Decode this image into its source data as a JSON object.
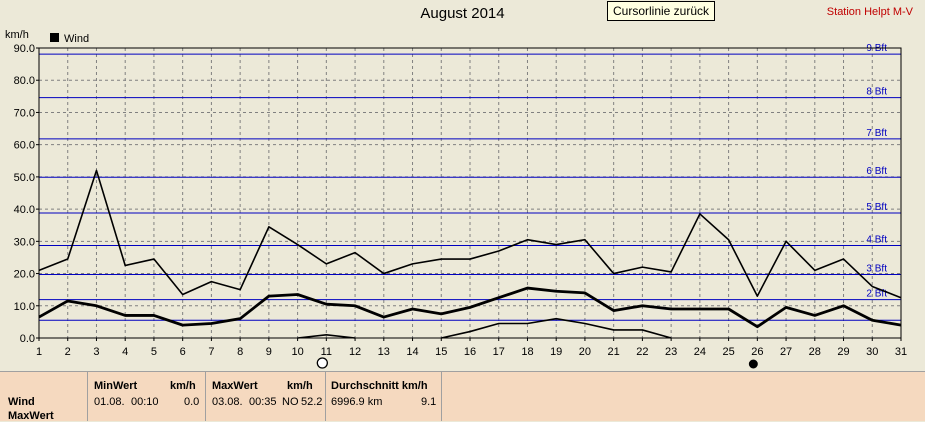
{
  "header": {
    "title": "August 2014",
    "cursor_button": "Cursorlinie zurück",
    "station": "Station Helpt M-V"
  },
  "chart_data": {
    "type": "line",
    "ylabel": "km/h",
    "ylim": [
      0,
      90
    ],
    "yticks": [
      "0.0",
      "10.0",
      "20.0",
      "30.0",
      "40.0",
      "50.0",
      "60.0",
      "70.0",
      "80.0",
      "90.0"
    ],
    "categories": [
      "1",
      "2",
      "3",
      "4",
      "5",
      "6",
      "7",
      "8",
      "9",
      "10",
      "11",
      "12",
      "13",
      "14",
      "15",
      "16",
      "17",
      "18",
      "19",
      "20",
      "21",
      "22",
      "23",
      "24",
      "25",
      "26",
      "27",
      "28",
      "29",
      "30",
      "31"
    ],
    "legend": {
      "label": "Wind",
      "position": "top-left"
    },
    "grid": true,
    "beaufort_lines": [
      {
        "label": "",
        "value": 5.5
      },
      {
        "label": "2 Bft",
        "value": 11.9
      },
      {
        "label": "3 Bft",
        "value": 19.7
      },
      {
        "label": "4 Bft",
        "value": 28.7
      },
      {
        "label": "5 Bft",
        "value": 38.8
      },
      {
        "label": "6 Bft",
        "value": 49.9
      },
      {
        "label": "7 Bft",
        "value": 61.8
      },
      {
        "label": "8 Bft",
        "value": 74.6
      },
      {
        "label": "9 Bft",
        "value": 88.1
      }
    ],
    "series": [
      {
        "name": "Wind",
        "role": "max",
        "values": [
          21,
          24.5,
          52,
          22.5,
          24.5,
          13.5,
          17.5,
          15,
          34.5,
          29,
          23,
          26.5,
          20,
          23,
          24.5,
          24.5,
          27,
          30.5,
          29,
          30.5,
          20,
          22,
          20.5,
          38.5,
          30.5,
          13,
          30,
          21,
          24.5,
          16,
          12.5
        ]
      },
      {
        "name": "Wind",
        "role": "avg",
        "values": [
          6.5,
          11.5,
          10,
          7,
          7,
          4,
          4.5,
          6,
          13,
          13.5,
          10.5,
          10,
          6.5,
          9,
          7.5,
          9.5,
          12.5,
          15.5,
          14.5,
          14,
          8.5,
          10,
          9,
          9,
          9,
          3.5,
          9.5,
          7,
          10,
          5.5,
          4
        ]
      },
      {
        "name": "Wind",
        "role": "min",
        "values": [
          null,
          null,
          null,
          null,
          null,
          null,
          null,
          null,
          null,
          0,
          1,
          0,
          null,
          null,
          0,
          2,
          4.5,
          4.5,
          6,
          4.5,
          2.5,
          2.5,
          0,
          null,
          null,
          null,
          null,
          null,
          null,
          null,
          null
        ]
      }
    ],
    "moon_markers": [
      {
        "day": "11",
        "phase": "full"
      },
      {
        "day": "26",
        "phase": "new"
      }
    ]
  },
  "panel": {
    "series_label": "Wind",
    "row2_label": "MaxWert",
    "min_header": "MinWert",
    "min_unit": "km/h",
    "min_date": "01.08.",
    "min_time": "00:10",
    "min_value": "0.0",
    "max_header": "MaxWert",
    "max_unit": "km/h",
    "max_date": "03.08.",
    "max_time": "00:35",
    "max_dir": "NO",
    "max_value": "52.2",
    "avg_header": "Durchschnitt km/h",
    "avg_distance": "6996.9 km",
    "avg_value": "9.1"
  },
  "colors": {
    "background": "#ece9d8",
    "plot_bg": "#ece9d8",
    "beaufort_line": "#0000c0",
    "beaufort_label": "#0000c0",
    "series": "#000000",
    "station": "#c00000",
    "panel_bg": "#f5d9bf"
  }
}
